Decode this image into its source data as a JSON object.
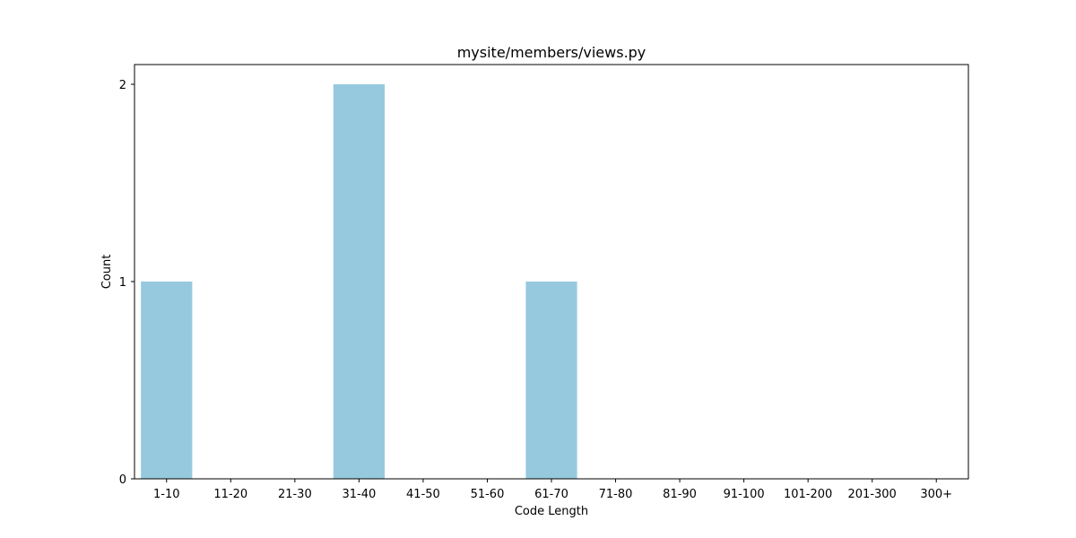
{
  "chart_data": {
    "type": "bar",
    "title": "mysite/members/views.py",
    "xlabel": "Code Length",
    "ylabel": "Count",
    "categories": [
      "1-10",
      "11-20",
      "21-30",
      "31-40",
      "41-50",
      "51-60",
      "61-70",
      "71-80",
      "81-90",
      "91-100",
      "101-200",
      "201-300",
      "300+"
    ],
    "values": [
      1,
      0,
      0,
      2,
      0,
      0,
      1,
      0,
      0,
      0,
      0,
      0,
      0
    ],
    "ylim": [
      0,
      2.1
    ],
    "yticks": [
      0,
      1,
      2
    ],
    "grid": false,
    "bar_color": "#96c9de",
    "axis_color": "#000000"
  }
}
